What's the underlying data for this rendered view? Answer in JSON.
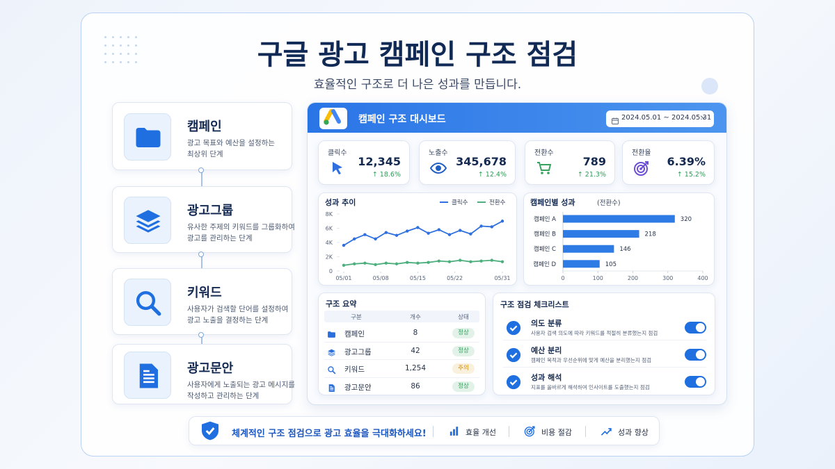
{
  "header": {
    "title": "구글 광고 캠페인 구조 점검",
    "subtitle": "효율적인 구조로 더 나은 성과를 만듭니다."
  },
  "levels": [
    {
      "title": "캠페인",
      "desc": [
        "광고 목표와 예산을 설정하는",
        "최상위 단계"
      ]
    },
    {
      "title": "광고그룹",
      "desc": [
        "유사한 주제의 키워드를 그룹화하여",
        "광고를 관리하는 단계"
      ]
    },
    {
      "title": "키워드",
      "desc": [
        "사용자가 검색할 단어를 설정하여",
        "광고 노출을 결정하는 단계"
      ]
    },
    {
      "title": "광고문안",
      "desc": [
        "사용자에게 노출되는 광고 메시지를",
        "작성하고 관리하는 단계"
      ]
    }
  ],
  "dashboard": {
    "title": "캠페인 구조 대시보드",
    "date_range": "2024.05.01 ~ 2024.05.31",
    "kpis": [
      {
        "label": "클릭수",
        "value": "12,345",
        "change": "↑ 18.6%"
      },
      {
        "label": "노출수",
        "value": "345,678",
        "change": "↑ 12.4%"
      },
      {
        "label": "전환수",
        "value": "789",
        "change": "↑ 21.3%"
      },
      {
        "label": "전환율",
        "value": "6.39%",
        "change": "↑ 15.2%"
      }
    ],
    "summary": {
      "title": "구조 요약",
      "columns": [
        "구분",
        "개수",
        "상태"
      ],
      "rows": [
        {
          "item": "캠페인",
          "count": "8",
          "status": "정상",
          "status_color": "#2e9d57"
        },
        {
          "item": "광고그룹",
          "count": "42",
          "status": "정상",
          "status_color": "#2e9d57"
        },
        {
          "item": "키워드",
          "count": "1,254",
          "status": "주의",
          "status_color": "#d38b00"
        },
        {
          "item": "광고문안",
          "count": "86",
          "status": "정상",
          "status_color": "#2e9d57"
        }
      ]
    },
    "checklist": {
      "title": "구조 점검 체크리스트",
      "items": [
        {
          "title": "의도 분류",
          "desc": "사용자 검색 의도에 따라 키워드를 적절히 분류했는지 점검"
        },
        {
          "title": "예산 분리",
          "desc": "캠페인 목적과 우선순위에 맞게 예산을 분리했는지 점검"
        },
        {
          "title": "성과 해석",
          "desc": "지표를 올바르게 해석하여 인사이트를 도출했는지 점검"
        }
      ]
    }
  },
  "chart_data": [
    {
      "type": "line",
      "title": "성과 추이",
      "x": [
        1,
        3,
        5,
        7,
        9,
        11,
        13,
        15,
        17,
        19,
        21,
        23,
        25,
        27,
        29,
        31
      ],
      "xlim": [
        1,
        31
      ],
      "xticks": [
        {
          "value": 1,
          "label": "05/01"
        },
        {
          "value": 8,
          "label": "05/08"
        },
        {
          "value": 15,
          "label": "05/15"
        },
        {
          "value": 22,
          "label": "05/22"
        },
        {
          "value": 31,
          "label": "05/31"
        }
      ],
      "ylim": [
        0,
        8000
      ],
      "yticks": [
        0,
        {
          "value": 2000,
          "label": "2K"
        },
        {
          "value": 4000,
          "label": "4K"
        },
        {
          "value": 6000,
          "label": "6K"
        },
        {
          "value": 8000,
          "label": "8K"
        }
      ],
      "legend": "top-right",
      "series": [
        {
          "name": "클릭수",
          "color": "#2f6fde",
          "values": [
            3600,
            4500,
            5100,
            4500,
            5400,
            5000,
            5600,
            6100,
            5300,
            5800,
            5100,
            5700,
            5200,
            6300,
            6200,
            7000
          ]
        },
        {
          "name": "전환수",
          "color": "#4caf7d",
          "values": [
            800,
            1000,
            1100,
            900,
            1100,
            1000,
            1200,
            1100,
            1200,
            1400,
            1300,
            1500,
            1300,
            1400,
            1500,
            1300
          ]
        }
      ]
    },
    {
      "type": "bar",
      "orientation": "horizontal",
      "title": "캠페인별 성과",
      "subtitle": "(전환수)",
      "categories": [
        "캠페인 A",
        "캠페인 B",
        "캠페인 C",
        "캠페인 D"
      ],
      "values": [
        320,
        218,
        146,
        105
      ],
      "color": "#2f7be6",
      "xlim": [
        0,
        400
      ],
      "xticks": [
        0,
        100,
        200,
        300,
        400
      ]
    }
  ],
  "footer": {
    "message": "체계적인 구조 점검으로 광고 효율을 극대화하세요!",
    "items": [
      "효율 개선",
      "비용 절감",
      "성과 향상"
    ]
  }
}
